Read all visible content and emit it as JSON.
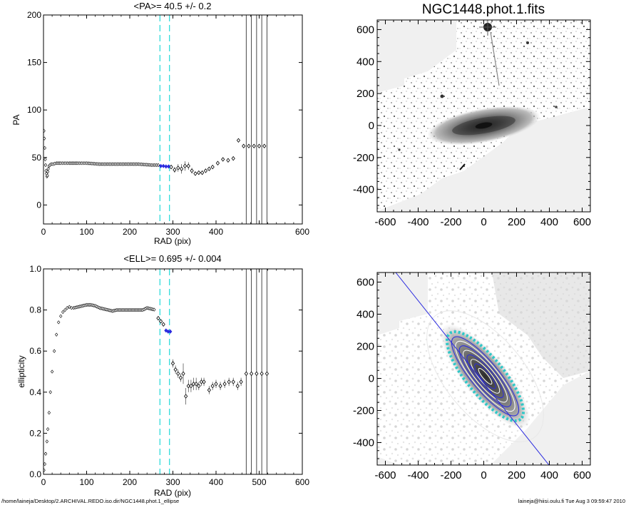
{
  "footer": {
    "path": "/home/laineja/Desktop/2.ARCHIVAL.REDO.iso.dir/NGC1448.phot.1_ellipse",
    "user_stamp": "laineja@hiisi.oulu.fi  Tue Aug  3 09:59:47 2010"
  },
  "colors": {
    "axis": "#000000",
    "cyan": "#33dddd",
    "blue": "#2a2adf",
    "gray": "#555555"
  },
  "chart_data": [
    {
      "id": "pa",
      "type": "scatter",
      "title": "<PA>=  40.5 +/-   0.2",
      "xlabel": "RAD (pix)",
      "ylabel": "PA",
      "xlim": [
        0,
        600
      ],
      "ylim": [
        -20,
        200
      ],
      "xticks": [
        0,
        100,
        200,
        300,
        400,
        600
      ],
      "xticks_all": [
        0,
        100,
        200,
        300,
        400,
        500,
        600
      ],
      "yticks": [
        0,
        50,
        100,
        150,
        200
      ],
      "cyan_lines": [
        270,
        292
      ],
      "vertical_lines": [
        470,
        482,
        494,
        506,
        518
      ],
      "curve": [
        [
          1,
          78
        ],
        [
          2,
          70
        ],
        [
          3,
          60
        ],
        [
          4,
          48
        ],
        [
          5,
          42
        ],
        [
          6,
          36
        ],
        [
          7,
          33
        ],
        [
          8,
          30
        ],
        [
          9,
          31
        ],
        [
          10,
          35
        ],
        [
          11,
          38
        ],
        [
          13,
          41
        ],
        [
          15,
          42
        ],
        [
          18,
          43
        ],
        [
          22,
          43
        ],
        [
          30,
          44
        ],
        [
          40,
          44
        ],
        [
          60,
          44
        ],
        [
          80,
          44
        ],
        [
          100,
          44
        ],
        [
          130,
          43
        ],
        [
          160,
          43
        ],
        [
          190,
          43
        ],
        [
          220,
          43
        ],
        [
          250,
          42
        ],
        [
          270,
          42
        ]
      ],
      "blue_points": [
        [
          272,
          41
        ],
        [
          278,
          41
        ],
        [
          284,
          40.5
        ],
        [
          290,
          40.5
        ]
      ],
      "points": [
        [
          296,
          40,
          2
        ],
        [
          304,
          37,
          3
        ],
        [
          312,
          39,
          4
        ],
        [
          320,
          38,
          5
        ],
        [
          328,
          41,
          5
        ],
        [
          336,
          41,
          4
        ],
        [
          344,
          36,
          3
        ],
        [
          352,
          33,
          2
        ],
        [
          360,
          34,
          2
        ],
        [
          368,
          34,
          2
        ],
        [
          376,
          36,
          2
        ],
        [
          384,
          38,
          2
        ],
        [
          392,
          40,
          2
        ],
        [
          404,
          44,
          2
        ],
        [
          416,
          48,
          2
        ],
        [
          428,
          47,
          2
        ],
        [
          440,
          49,
          2
        ],
        [
          452,
          68,
          2
        ],
        [
          464,
          62,
          0
        ],
        [
          476,
          62,
          0
        ],
        [
          488,
          62,
          0
        ],
        [
          500,
          62,
          0
        ],
        [
          512,
          62,
          0
        ]
      ]
    },
    {
      "id": "ell",
      "type": "scatter",
      "title": "<ELL>= 0.695 +/-  0.004",
      "xlabel": "RAD (pix)",
      "ylabel": "ellipticity",
      "xlim": [
        0,
        600
      ],
      "ylim": [
        0,
        1
      ],
      "xticks": [
        0,
        100,
        200,
        300,
        400,
        500,
        600
      ],
      "yticks": [
        0.0,
        0.2,
        0.4,
        0.6,
        0.8,
        1.0
      ],
      "cyan_lines": [
        270,
        292
      ],
      "vertical_lines": [
        470,
        482,
        494,
        506,
        518
      ],
      "curve": [
        [
          1,
          0.02
        ],
        [
          3,
          0.05
        ],
        [
          5,
          0.1
        ],
        [
          8,
          0.16
        ],
        [
          10,
          0.22
        ],
        [
          13,
          0.3
        ],
        [
          16,
          0.4
        ],
        [
          20,
          0.5
        ],
        [
          25,
          0.6
        ],
        [
          30,
          0.68
        ],
        [
          35,
          0.74
        ],
        [
          40,
          0.77
        ],
        [
          45,
          0.79
        ],
        [
          50,
          0.8
        ],
        [
          55,
          0.81
        ],
        [
          60,
          0.815
        ],
        [
          65,
          0.81
        ],
        [
          70,
          0.81
        ],
        [
          80,
          0.815
        ],
        [
          90,
          0.82
        ],
        [
          100,
          0.825
        ],
        [
          110,
          0.825
        ],
        [
          120,
          0.82
        ],
        [
          130,
          0.81
        ],
        [
          140,
          0.805
        ],
        [
          150,
          0.8
        ],
        [
          160,
          0.795
        ],
        [
          170,
          0.8
        ],
        [
          180,
          0.8
        ],
        [
          190,
          0.8
        ],
        [
          200,
          0.8
        ],
        [
          210,
          0.8
        ],
        [
          220,
          0.8
        ],
        [
          230,
          0.8
        ],
        [
          240,
          0.81
        ],
        [
          250,
          0.805
        ],
        [
          260,
          0.8
        ]
      ],
      "points": [
        [
          266,
          0.76,
          0.005
        ],
        [
          272,
          0.745,
          0.005
        ],
        [
          278,
          0.73,
          0.006
        ]
      ],
      "blue_points": [
        [
          284,
          0.7
        ],
        [
          289,
          0.695
        ],
        [
          294,
          0.695
        ]
      ],
      "points_after": [
        [
          300,
          0.54,
          0.02
        ],
        [
          306,
          0.51,
          0.02
        ],
        [
          312,
          0.49,
          0.02
        ],
        [
          318,
          0.47,
          0.02
        ],
        [
          324,
          0.49,
          0.05
        ],
        [
          330,
          0.38,
          0.04
        ],
        [
          336,
          0.43,
          0.03
        ],
        [
          342,
          0.43,
          0.03
        ],
        [
          348,
          0.44,
          0.03
        ],
        [
          354,
          0.44,
          0.03
        ],
        [
          360,
          0.43,
          0.02
        ],
        [
          366,
          0.45,
          0.02
        ],
        [
          372,
          0.45,
          0.02
        ],
        [
          384,
          0.41,
          0.02
        ],
        [
          392,
          0.43,
          0.02
        ],
        [
          400,
          0.44,
          0.02
        ],
        [
          410,
          0.43,
          0.02
        ],
        [
          420,
          0.44,
          0.02
        ],
        [
          430,
          0.45,
          0.02
        ],
        [
          440,
          0.45,
          0.02
        ],
        [
          450,
          0.43,
          0.02
        ],
        [
          458,
          0.45,
          0.02
        ],
        [
          470,
          0.49,
          0
        ],
        [
          482,
          0.49,
          0
        ],
        [
          494,
          0.49,
          0
        ],
        [
          506,
          0.49,
          0
        ],
        [
          518,
          0.49,
          0
        ]
      ]
    },
    {
      "id": "img1",
      "type": "image",
      "title": "NGC1448.phot.1.fits",
      "xlim": [
        -650,
        650
      ],
      "ylim": [
        -540,
        660
      ],
      "xticks": [
        -600,
        -400,
        -200,
        0,
        200,
        400,
        600
      ],
      "yticks": [
        -400,
        -200,
        0,
        200,
        400,
        600
      ],
      "galaxy_pa_deg": 40.5
    },
    {
      "id": "img2",
      "type": "image",
      "title": "",
      "xlim": [
        -650,
        650
      ],
      "ylim": [
        -540,
        660
      ],
      "xticks": [
        -600,
        -400,
        -200,
        0,
        200,
        400,
        600
      ],
      "yticks": [
        -400,
        -200,
        0,
        200,
        400,
        600
      ],
      "galaxy_pa_deg": 40.5
    }
  ]
}
